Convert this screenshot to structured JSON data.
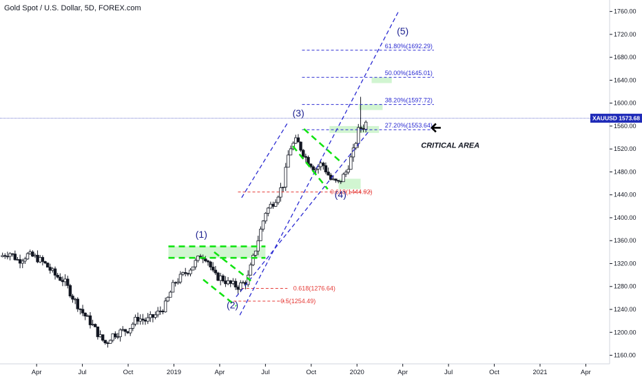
{
  "header": {
    "symbol_title": "Gold Spot / U.S. Dollar, 5D, FOREX.com"
  },
  "colors": {
    "up": "#ffffff",
    "down": "#131722",
    "blue_dash": "#2a2ad2",
    "green_dash": "#11e311",
    "green_zone": "#c9f3c9",
    "red_dash": "#e53935",
    "price_badge": "#1f2bb8",
    "axis_text": "#131722"
  },
  "chart_data": {
    "type": "candlestick",
    "ylim": [
      1145,
      1780
    ],
    "xlim": [
      2018.05,
      2021.38
    ],
    "y_ticks": [
      "1160.00",
      "1200.00",
      "1240.00",
      "1280.00",
      "1320.00",
      "1360.00",
      "1400.00",
      "1440.00",
      "1480.00",
      "1520.00",
      "1560.00",
      "1600.00",
      "1640.00",
      "1680.00",
      "1720.00",
      "1760.00"
    ],
    "x_ticks": [
      {
        "label": "Apr",
        "x": 2018.25
      },
      {
        "label": "Jul",
        "x": 2018.5
      },
      {
        "label": "Oct",
        "x": 2018.75
      },
      {
        "label": "2019",
        "x": 2019.0
      },
      {
        "label": "Apr",
        "x": 2019.25
      },
      {
        "label": "Jul",
        "x": 2019.5
      },
      {
        "label": "Oct",
        "x": 2019.75
      },
      {
        "label": "2020",
        "x": 2020.0
      },
      {
        "label": "Apr",
        "x": 2020.25
      },
      {
        "label": "Jul",
        "x": 2020.5
      },
      {
        "label": "Oct",
        "x": 2020.75
      },
      {
        "label": "2021",
        "x": 2021.0
      },
      {
        "label": "Apr",
        "x": 2021.25
      }
    ],
    "current_price": {
      "label": "XAUUSD",
      "value": "1573.68",
      "y": 1573.68
    },
    "series_anchors": [
      [
        2018.05,
        1332
      ],
      [
        2018.1,
        1340
      ],
      [
        2018.15,
        1325
      ],
      [
        2018.2,
        1335
      ],
      [
        2018.25,
        1330
      ],
      [
        2018.3,
        1318
      ],
      [
        2018.35,
        1300
      ],
      [
        2018.4,
        1290
      ],
      [
        2018.45,
        1260
      ],
      [
        2018.5,
        1235
      ],
      [
        2018.55,
        1215
      ],
      [
        2018.6,
        1190
      ],
      [
        2018.63,
        1180
      ],
      [
        2018.66,
        1195
      ],
      [
        2018.7,
        1200
      ],
      [
        2018.75,
        1205
      ],
      [
        2018.8,
        1225
      ],
      [
        2018.85,
        1220
      ],
      [
        2018.9,
        1230
      ],
      [
        2018.95,
        1245
      ],
      [
        2019.0,
        1285
      ],
      [
        2019.05,
        1300
      ],
      [
        2019.1,
        1315
      ],
      [
        2019.15,
        1335
      ],
      [
        2019.18,
        1330
      ],
      [
        2019.22,
        1298
      ],
      [
        2019.26,
        1295
      ],
      [
        2019.3,
        1285
      ],
      [
        2019.35,
        1280
      ],
      [
        2019.4,
        1290
      ],
      [
        2019.45,
        1350
      ],
      [
        2019.5,
        1410
      ],
      [
        2019.55,
        1430
      ],
      [
        2019.6,
        1460
      ],
      [
        2019.63,
        1520
      ],
      [
        2019.67,
        1535
      ],
      [
        2019.72,
        1505
      ],
      [
        2019.77,
        1485
      ],
      [
        2019.81,
        1495
      ],
      [
        2019.86,
        1465
      ],
      [
        2019.9,
        1460
      ],
      [
        2019.94,
        1480
      ],
      [
        2019.98,
        1515
      ],
      [
        2020.01,
        1555
      ],
      [
        2020.04,
        1560
      ],
      [
        2020.06,
        1573
      ]
    ],
    "elliott_labels": [
      {
        "text": "(1)",
        "x": 2019.15,
        "y": 1365
      },
      {
        "text": "(2)",
        "x": 2019.32,
        "y": 1242
      },
      {
        "text": "(3)",
        "x": 2019.68,
        "y": 1577
      },
      {
        "text": "(4)",
        "x": 2019.91,
        "y": 1435
      },
      {
        "text": "(5)",
        "x": 2020.25,
        "y": 1720
      }
    ],
    "fib_levels": [
      {
        "label": "61.80%(1692.29)",
        "y": 1692.29,
        "x_start": 2019.7,
        "x_end": 2020.42,
        "color": "blue"
      },
      {
        "label": "50.00%(1645.01)",
        "y": 1645.01,
        "x_start": 2019.7,
        "x_end": 2020.42,
        "color": "blue"
      },
      {
        "label": "38.20%(1597.72)",
        "y": 1597.72,
        "x_start": 2019.7,
        "x_end": 2020.42,
        "color": "blue"
      },
      {
        "label": "27.20%(1553.64)",
        "y": 1553.64,
        "x_start": 2019.7,
        "x_end": 2020.42,
        "color": "blue"
      },
      {
        "label": "0.618(1444.92)",
        "y": 1444.92,
        "x_start": 2019.35,
        "x_end": 2020.08,
        "color": "red"
      },
      {
        "label": "0.618(1276.64)",
        "y": 1276.64,
        "x_start": 2019.37,
        "x_end": 2019.62,
        "color": "red"
      },
      {
        "label": "0.5(1254.49)",
        "y": 1254.49,
        "x_start": 2019.3,
        "x_end": 2019.62,
        "color": "red"
      }
    ],
    "annotation": {
      "text": "CRITICAL AREA",
      "x": 2020.35,
      "y": 1522
    },
    "arrow": {
      "x": 2020.42,
      "y": 1557
    },
    "channel_lines": [
      {
        "from": [
          2019.36,
          1230
        ],
        "to": [
          2020.23,
          1762
        ]
      },
      {
        "from": [
          2019.37,
          1435
        ],
        "to": [
          2019.62,
          1565
        ]
      },
      {
        "from": [
          2019.34,
          1262
        ],
        "to": [
          2020.07,
          1553
        ]
      }
    ],
    "green_lines": [
      {
        "from": [
          2018.97,
          1350
        ],
        "to": [
          2019.5,
          1350
        ]
      },
      {
        "from": [
          2018.97,
          1330
        ],
        "to": [
          2019.5,
          1330
        ]
      },
      {
        "from": [
          2019.22,
          1340
        ],
        "to": [
          2019.42,
          1290
        ]
      },
      {
        "from": [
          2019.16,
          1292
        ],
        "to": [
          2019.34,
          1246
        ]
      },
      {
        "from": [
          2019.71,
          1555
        ],
        "to": [
          2019.92,
          1495
        ]
      },
      {
        "from": [
          2019.65,
          1525
        ],
        "to": [
          2019.84,
          1450
        ]
      }
    ],
    "green_zones": [
      {
        "x1": 2018.97,
        "x2": 2019.5,
        "y1": 1330,
        "y2": 1350
      },
      {
        "x1": 2019.9,
        "x2": 2020.02,
        "y1": 1450,
        "y2": 1468
      },
      {
        "x1": 2019.85,
        "x2": 2020.12,
        "y1": 1548,
        "y2": 1560
      },
      {
        "x1": 2020.01,
        "x2": 2020.14,
        "y1": 1588,
        "y2": 1598
      },
      {
        "x1": 2020.08,
        "x2": 2020.19,
        "y1": 1635,
        "y2": 1645
      }
    ]
  }
}
